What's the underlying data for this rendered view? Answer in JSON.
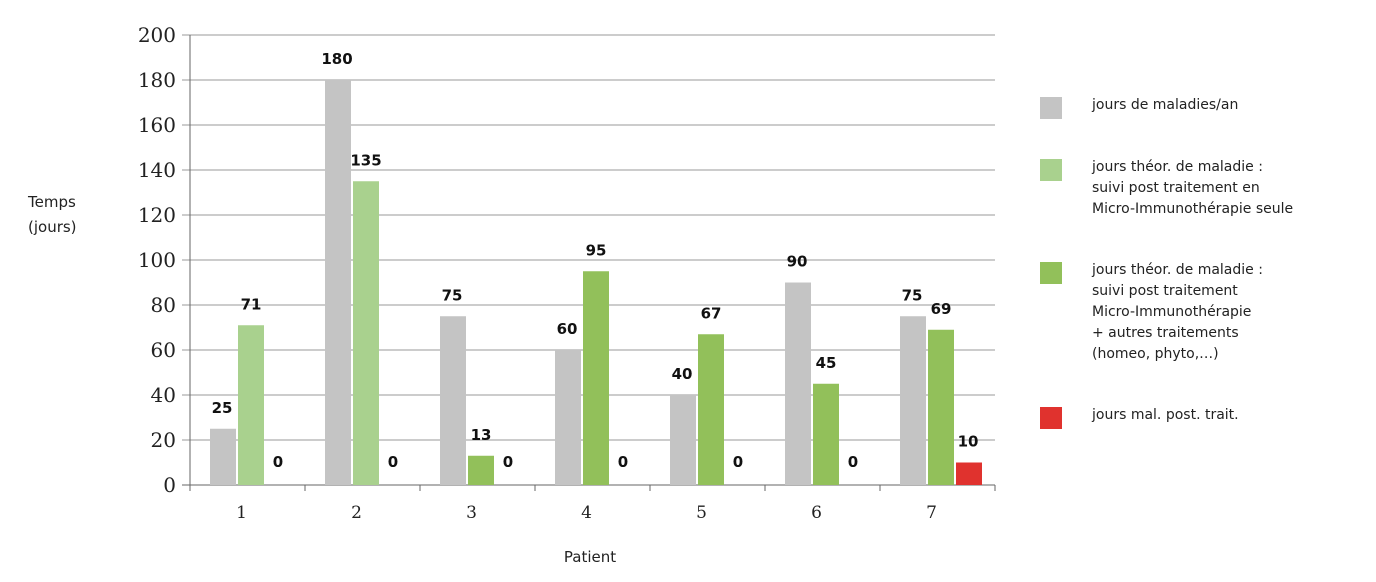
{
  "chart_data": {
    "type": "bar",
    "ylabel_line1": "Temps",
    "ylabel_line2": "(jours)",
    "xlabel": "Patient",
    "ylim": [
      0,
      200
    ],
    "yticks": [
      0,
      20,
      40,
      60,
      80,
      100,
      120,
      140,
      160,
      180,
      200
    ],
    "grid": true,
    "legend_position": "right",
    "categories": [
      "1",
      "2",
      "3",
      "4",
      "5",
      "6",
      "7"
    ],
    "series": [
      {
        "name": "jours de maladies/an",
        "color": "#c4c4c4",
        "values": [
          25,
          180,
          75,
          60,
          40,
          90,
          75
        ]
      },
      {
        "name": "jours théor. de maladie :\nsuivi post traitement en\nMicro-Immunothérapie seule",
        "color": "#a9d18e",
        "values": [
          71,
          135,
          null,
          null,
          null,
          null,
          null
        ]
      },
      {
        "name": "jours théor. de maladie :\nsuivi post traitement\nMicro-Immunothérapie\n+ autres traitements\n(homeo, phyto,…)",
        "color": "#92c05a",
        "values": [
          null,
          null,
          13,
          95,
          67,
          45,
          69
        ]
      },
      {
        "name": "jours mal. post. trait.",
        "color": "#e0322e",
        "values": [
          0,
          0,
          0,
          0,
          0,
          0,
          10
        ]
      }
    ]
  }
}
